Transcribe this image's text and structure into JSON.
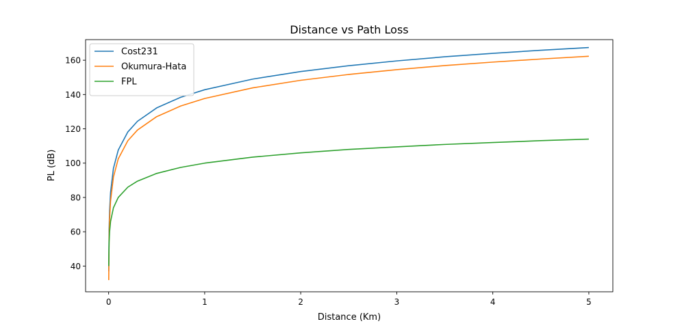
{
  "chart_data": {
    "type": "line",
    "title": "Distance vs Path Loss",
    "xlabel": "Distance (Km)",
    "ylabel": "PL (dB)",
    "xlim": [
      -0.24,
      5.25
    ],
    "ylim": [
      25.0,
      172.0
    ],
    "xticks": [
      0,
      1,
      2,
      3,
      4,
      5
    ],
    "yticks": [
      40,
      60,
      80,
      100,
      120,
      140,
      160
    ],
    "grid": false,
    "legend": "top-left",
    "series": [
      {
        "name": "Cost231",
        "color": "#1f77b4",
        "x": [
          0.001,
          0.005,
          0.01,
          0.02,
          0.05,
          0.1,
          0.2,
          0.3,
          0.5,
          0.75,
          1,
          1.5,
          2,
          2.5,
          3,
          3.5,
          4,
          4.5,
          5
        ],
        "y": [
          36.9,
          61.7,
          72.4,
          83.0,
          97.0,
          107.6,
          118.2,
          124.4,
          132.2,
          138.4,
          142.8,
          149.0,
          153.4,
          156.8,
          159.6,
          162.0,
          164.0,
          165.8,
          167.4
        ]
      },
      {
        "name": "Okumura-Hata",
        "color": "#ff7f0e",
        "x": [
          0.001,
          0.005,
          0.01,
          0.02,
          0.05,
          0.1,
          0.2,
          0.3,
          0.5,
          0.75,
          1,
          1.5,
          2,
          2.5,
          3,
          3.5,
          4,
          4.5,
          5
        ],
        "y": [
          31.8,
          56.6,
          67.3,
          77.9,
          91.9,
          102.5,
          113.1,
          119.3,
          127.1,
          133.3,
          137.7,
          143.9,
          148.3,
          151.7,
          154.5,
          156.9,
          158.9,
          160.7,
          162.3
        ]
      },
      {
        "name": "FPL",
        "color": "#2ca02c",
        "x": [
          0.001,
          0.005,
          0.01,
          0.02,
          0.05,
          0.1,
          0.2,
          0.3,
          0.5,
          0.75,
          1,
          1.5,
          2,
          2.5,
          3,
          3.5,
          4,
          4.5,
          5
        ],
        "y": [
          40.0,
          54.0,
          60.0,
          66.0,
          74.0,
          80.0,
          86.0,
          89.5,
          94.0,
          97.5,
          100.0,
          103.5,
          106.0,
          108.0,
          109.5,
          110.9,
          112.0,
          113.1,
          114.0
        ]
      }
    ]
  }
}
